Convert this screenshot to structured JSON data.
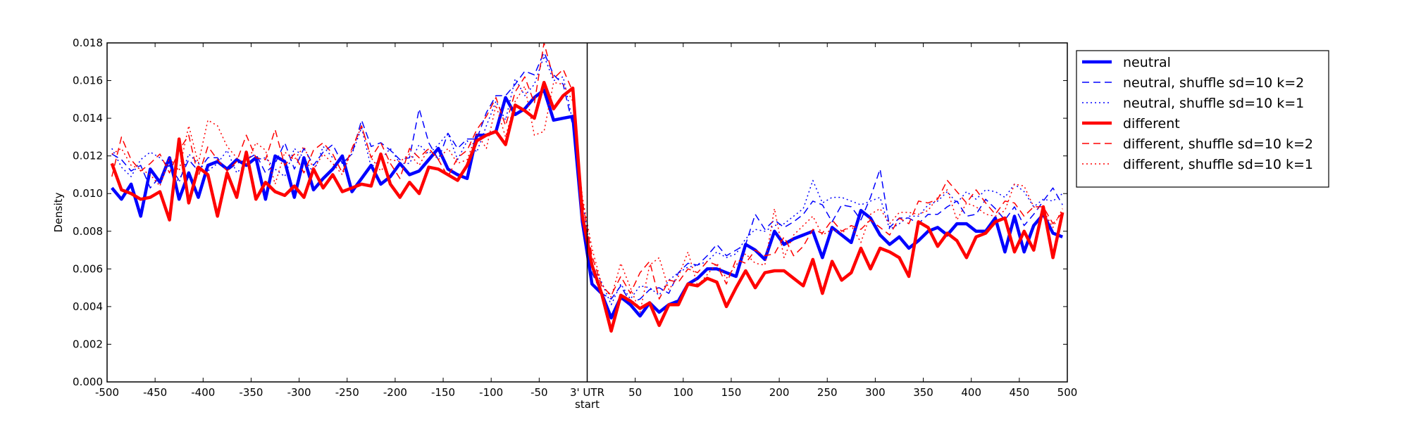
{
  "chart_data": {
    "type": "line",
    "title": "",
    "xlabel": "",
    "ylabel": "Density",
    "xlim": [
      -500,
      500
    ],
    "ylim": [
      0,
      0.018
    ],
    "grid": false,
    "legend_position": "outside-right-top",
    "vertical_line_x": 0,
    "x_ticks": [
      -500,
      -450,
      -400,
      -350,
      -300,
      -250,
      -200,
      -150,
      -100,
      -50,
      0,
      50,
      100,
      150,
      200,
      250,
      300,
      350,
      400,
      450,
      500
    ],
    "x_tick_labels": [
      "-500",
      "-450",
      "-400",
      "-350",
      "-300",
      "-250",
      "-200",
      "-150",
      "-100",
      "-50",
      "3' UTR",
      "50",
      "100",
      "150",
      "200",
      "250",
      "300",
      "350",
      "400",
      "450",
      "500"
    ],
    "x_tick_sublabel": "start",
    "y_ticks": [
      0,
      0.002,
      0.004,
      0.006,
      0.008,
      0.01,
      0.012,
      0.014,
      0.016,
      0.018
    ],
    "y_tick_labels": [
      "0.000",
      "0.002",
      "0.004",
      "0.006",
      "0.008",
      "0.010",
      "0.012",
      "0.014",
      "0.016",
      "0.018"
    ],
    "x": [
      -495,
      -485,
      -475,
      -465,
      -455,
      -445,
      -435,
      -425,
      -415,
      -405,
      -395,
      -385,
      -375,
      -365,
      -355,
      -345,
      -335,
      -325,
      -315,
      -305,
      -295,
      -285,
      -275,
      -265,
      -255,
      -245,
      -235,
      -225,
      -215,
      -205,
      -195,
      -185,
      -175,
      -165,
      -155,
      -145,
      -135,
      -125,
      -115,
      -105,
      -95,
      -85,
      -75,
      -65,
      -55,
      -45,
      -35,
      -25,
      -15,
      -5,
      5,
      15,
      25,
      35,
      45,
      55,
      65,
      75,
      85,
      95,
      105,
      115,
      125,
      135,
      145,
      155,
      165,
      175,
      185,
      195,
      205,
      215,
      225,
      235,
      245,
      255,
      265,
      275,
      285,
      295,
      305,
      315,
      325,
      335,
      345,
      355,
      365,
      375,
      385,
      395,
      405,
      415,
      425,
      435,
      445,
      455,
      465,
      475,
      485,
      495
    ],
    "series": [
      {
        "name": "neutral",
        "color": "#0000ff",
        "style": "solid",
        "width": 4.5,
        "values": [
          0.0103,
          0.0097,
          0.0105,
          0.0088,
          0.0113,
          0.0106,
          0.0119,
          0.0097,
          0.0111,
          0.0098,
          0.0115,
          0.0117,
          0.0113,
          0.0118,
          0.0115,
          0.0119,
          0.0097,
          0.012,
          0.0117,
          0.0098,
          0.0119,
          0.0102,
          0.0108,
          0.0113,
          0.012,
          0.0101,
          0.0108,
          0.0115,
          0.0105,
          0.0109,
          0.0116,
          0.011,
          0.0112,
          0.0118,
          0.0124,
          0.0113,
          0.011,
          0.0108,
          0.0131,
          0.0131,
          0.0133,
          0.0151,
          0.0142,
          0.0145,
          0.0151,
          0.0155,
          0.0139,
          0.014,
          0.0141,
          0.0085,
          0.0052,
          0.0047,
          0.0034,
          0.0045,
          0.0041,
          0.0035,
          0.0042,
          0.0037,
          0.0041,
          0.0043,
          0.0052,
          0.0055,
          0.006,
          0.006,
          0.0058,
          0.0056,
          0.0073,
          0.007,
          0.0065,
          0.008,
          0.0073,
          0.0076,
          0.0078,
          0.008,
          0.0066,
          0.0082,
          0.0078,
          0.0074,
          0.0091,
          0.0087,
          0.0078,
          0.0073,
          0.0077,
          0.0071,
          0.0075,
          0.008,
          0.0082,
          0.0078,
          0.0084,
          0.0084,
          0.008,
          0.008,
          0.0087,
          0.0069,
          0.0088,
          0.0069,
          0.0083,
          0.0089,
          0.0079,
          0.0077
        ]
      },
      {
        "name": "neutral, shuffle sd=10 k=2",
        "color": "#0000ff",
        "style": "dashed",
        "width": 1.5,
        "values": [
          0.0121,
          0.0118,
          0.0112,
          0.0115,
          0.0103,
          0.0109,
          0.0115,
          0.0107,
          0.0118,
          0.0112,
          0.0119,
          0.0119,
          0.0112,
          0.0116,
          0.0118,
          0.0121,
          0.0111,
          0.0116,
          0.0127,
          0.0113,
          0.0124,
          0.0115,
          0.0122,
          0.0126,
          0.0116,
          0.0121,
          0.0139,
          0.0125,
          0.0127,
          0.0123,
          0.0118,
          0.0119,
          0.0145,
          0.0127,
          0.0118,
          0.0132,
          0.0124,
          0.0129,
          0.0129,
          0.0143,
          0.0152,
          0.0152,
          0.0158,
          0.0165,
          0.0163,
          0.0175,
          0.0163,
          0.0158,
          0.0136,
          0.0091,
          0.0058,
          0.0047,
          0.0044,
          0.0051,
          0.0042,
          0.0044,
          0.0049,
          0.005,
          0.0047,
          0.0058,
          0.0063,
          0.0062,
          0.0067,
          0.0073,
          0.0067,
          0.007,
          0.0073,
          0.0089,
          0.0081,
          0.0086,
          0.0082,
          0.0085,
          0.0089,
          0.0096,
          0.0094,
          0.0085,
          0.0094,
          0.0093,
          0.0086,
          0.0098,
          0.0113,
          0.0082,
          0.0087,
          0.0087,
          0.0084,
          0.0089,
          0.0089,
          0.0093,
          0.0096,
          0.0088,
          0.0089,
          0.0097,
          0.0092,
          0.0086,
          0.0093,
          0.0083,
          0.0089,
          0.0096,
          0.0103,
          0.0094
        ]
      },
      {
        "name": "neutral, shuffle sd=10 k=1",
        "color": "#0000ff",
        "style": "dotted",
        "width": 1.5,
        "values": [
          0.0124,
          0.0114,
          0.0109,
          0.0118,
          0.0122,
          0.0119,
          0.0114,
          0.0106,
          0.0121,
          0.0116,
          0.0112,
          0.0116,
          0.0123,
          0.0111,
          0.0116,
          0.0118,
          0.0119,
          0.0113,
          0.0109,
          0.0124,
          0.0119,
          0.0111,
          0.0125,
          0.0119,
          0.0116,
          0.0121,
          0.0135,
          0.0114,
          0.0118,
          0.0124,
          0.0116,
          0.0116,
          0.0126,
          0.0121,
          0.0126,
          0.0132,
          0.0118,
          0.0128,
          0.0122,
          0.0136,
          0.0149,
          0.0139,
          0.0161,
          0.0152,
          0.0158,
          0.0173,
          0.016,
          0.0162,
          0.0138,
          0.0097,
          0.0062,
          0.0053,
          0.0041,
          0.0052,
          0.0044,
          0.0051,
          0.005,
          0.0046,
          0.0054,
          0.0058,
          0.0061,
          0.0062,
          0.0064,
          0.0069,
          0.0066,
          0.0068,
          0.0076,
          0.0081,
          0.008,
          0.0083,
          0.0084,
          0.0088,
          0.0092,
          0.0107,
          0.0095,
          0.0098,
          0.0098,
          0.0096,
          0.0094,
          0.0096,
          0.0098,
          0.0081,
          0.0084,
          0.0088,
          0.0088,
          0.0094,
          0.0096,
          0.0101,
          0.0095,
          0.0101,
          0.0097,
          0.0102,
          0.0101,
          0.0098,
          0.0105,
          0.0101,
          0.0093,
          0.0097,
          0.0096,
          0.01
        ]
      },
      {
        "name": "different",
        "color": "#ff0000",
        "style": "solid",
        "width": 4.5,
        "values": [
          0.0116,
          0.0102,
          0.01,
          0.0097,
          0.0098,
          0.0101,
          0.0086,
          0.0129,
          0.0095,
          0.0114,
          0.011,
          0.0088,
          0.0111,
          0.0098,
          0.0122,
          0.0097,
          0.0106,
          0.0101,
          0.0099,
          0.0104,
          0.0098,
          0.0113,
          0.0103,
          0.011,
          0.0101,
          0.0103,
          0.0105,
          0.0104,
          0.0121,
          0.0105,
          0.0098,
          0.0106,
          0.01,
          0.0114,
          0.0113,
          0.011,
          0.0107,
          0.0115,
          0.0128,
          0.0131,
          0.0133,
          0.0126,
          0.0147,
          0.0144,
          0.014,
          0.0159,
          0.0145,
          0.0152,
          0.0156,
          0.0088,
          0.0062,
          0.0047,
          0.0027,
          0.0046,
          0.0043,
          0.0039,
          0.0042,
          0.003,
          0.0041,
          0.0041,
          0.0052,
          0.0051,
          0.0055,
          0.0053,
          0.004,
          0.005,
          0.0059,
          0.005,
          0.0058,
          0.0059,
          0.0059,
          0.0055,
          0.0051,
          0.0065,
          0.0047,
          0.0064,
          0.0054,
          0.0058,
          0.0071,
          0.006,
          0.0071,
          0.0069,
          0.0066,
          0.0056,
          0.0085,
          0.0082,
          0.0072,
          0.0079,
          0.0075,
          0.0066,
          0.0077,
          0.0079,
          0.0085,
          0.0087,
          0.0069,
          0.008,
          0.007,
          0.0093,
          0.0066,
          0.009
        ]
      },
      {
        "name": "different, shuffle sd=10 k=2",
        "color": "#ff0000",
        "style": "dashed",
        "width": 1.5,
        "values": [
          0.0109,
          0.013,
          0.0118,
          0.0112,
          0.0116,
          0.0121,
          0.0111,
          0.0123,
          0.0131,
          0.0109,
          0.0125,
          0.0118,
          0.0112,
          0.0117,
          0.0131,
          0.0119,
          0.0118,
          0.0134,
          0.0115,
          0.0121,
          0.0111,
          0.0123,
          0.0127,
          0.0121,
          0.0111,
          0.0124,
          0.0136,
          0.0119,
          0.0127,
          0.0116,
          0.0108,
          0.0124,
          0.0119,
          0.0124,
          0.0118,
          0.0109,
          0.0119,
          0.0123,
          0.0134,
          0.0141,
          0.0151,
          0.0136,
          0.0154,
          0.0162,
          0.0148,
          0.018,
          0.0161,
          0.0166,
          0.0154,
          0.0096,
          0.0067,
          0.0051,
          0.0046,
          0.0056,
          0.0047,
          0.0058,
          0.0064,
          0.0044,
          0.0054,
          0.0053,
          0.006,
          0.0058,
          0.0064,
          0.0062,
          0.0052,
          0.0065,
          0.0063,
          0.007,
          0.0067,
          0.0068,
          0.0077,
          0.0067,
          0.0072,
          0.0081,
          0.0079,
          0.0086,
          0.008,
          0.0083,
          0.0081,
          0.0086,
          0.0082,
          0.0078,
          0.0087,
          0.0084,
          0.0096,
          0.0095,
          0.0097,
          0.0107,
          0.0101,
          0.0095,
          0.0102,
          0.0095,
          0.0089,
          0.0096,
          0.0095,
          0.0088,
          0.0093,
          0.0093,
          0.0084,
          0.009
        ]
      },
      {
        "name": "different, shuffle sd=10 k=1",
        "color": "#ff0000",
        "style": "dotted",
        "width": 1.5,
        "values": [
          0.0121,
          0.0124,
          0.0115,
          0.0113,
          0.011,
          0.0104,
          0.0119,
          0.0112,
          0.0136,
          0.0116,
          0.0139,
          0.0136,
          0.0125,
          0.0119,
          0.0115,
          0.0127,
          0.0123,
          0.0105,
          0.0122,
          0.0118,
          0.0125,
          0.0113,
          0.0121,
          0.0116,
          0.011,
          0.0123,
          0.0136,
          0.0119,
          0.0112,
          0.0118,
          0.0117,
          0.0121,
          0.0115,
          0.0124,
          0.0118,
          0.0124,
          0.0116,
          0.0118,
          0.0132,
          0.0124,
          0.0147,
          0.013,
          0.0149,
          0.0157,
          0.0131,
          0.0133,
          0.0159,
          0.0158,
          0.0149,
          0.0098,
          0.0071,
          0.0052,
          0.0045,
          0.0063,
          0.005,
          0.0037,
          0.0062,
          0.0066,
          0.0049,
          0.0056,
          0.0069,
          0.0051,
          0.0057,
          0.0063,
          0.0055,
          0.0062,
          0.0068,
          0.0063,
          0.0062,
          0.0092,
          0.0066,
          0.0078,
          0.0083,
          0.0088,
          0.0078,
          0.0081,
          0.0079,
          0.0083,
          0.0074,
          0.0089,
          0.0092,
          0.0084,
          0.009,
          0.009,
          0.0089,
          0.0091,
          0.0098,
          0.0102,
          0.0086,
          0.0095,
          0.0093,
          0.0089,
          0.0088,
          0.0091,
          0.0105,
          0.0104,
          0.0093,
          0.0091,
          0.0082,
          0.0092
        ]
      }
    ]
  }
}
